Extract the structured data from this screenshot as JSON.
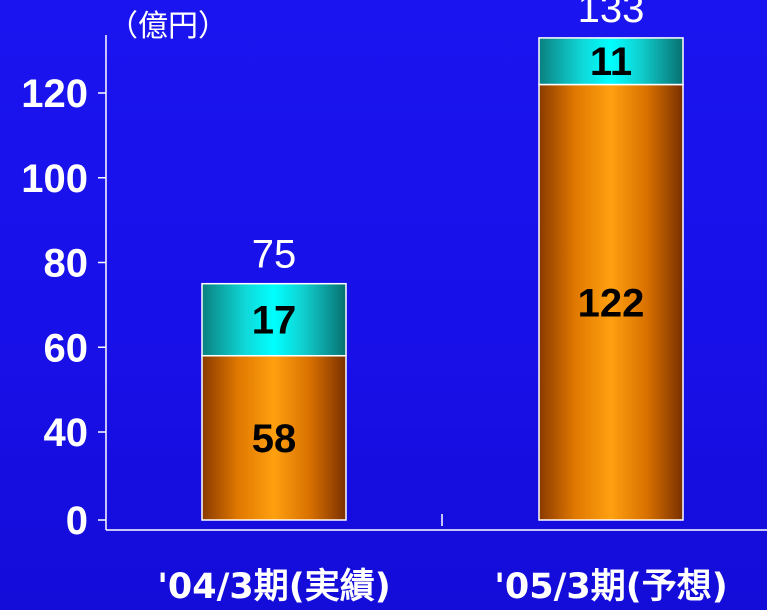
{
  "chart_data": {
    "type": "bar",
    "stacked": true,
    "unit_label": "（億円）",
    "categories": [
      "'04/3期(実績)",
      "'05/3期(予想)"
    ],
    "series": [
      {
        "values": [
          58,
          122
        ],
        "color": "#ff9900"
      },
      {
        "values": [
          17,
          11
        ],
        "color": "#00e8e8"
      }
    ],
    "totals": [
      75,
      133
    ],
    "y_ticks": [
      0,
      40,
      60,
      80,
      100,
      120
    ],
    "ylim": [
      0,
      133
    ],
    "grid": false
  }
}
